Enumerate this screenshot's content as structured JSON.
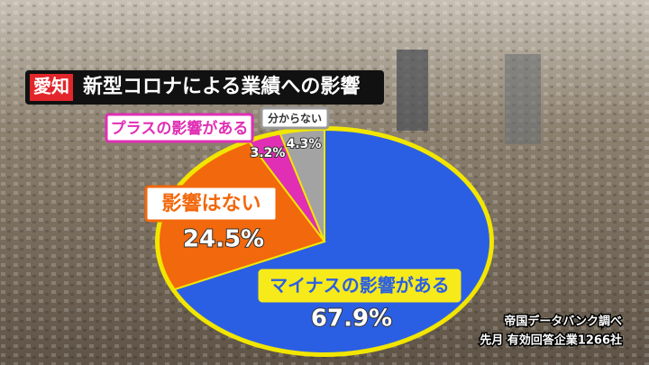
{
  "chart_data": {
    "type": "pie",
    "tag": "愛知",
    "title": "新型コロナによる業績への影響",
    "categories": [
      "マイナスの影響がある",
      "影響はない",
      "プラスの影響がある",
      "分からない"
    ],
    "values": [
      67.9,
      24.5,
      3.2,
      4.3
    ],
    "value_labels": [
      "67.9%",
      "24.5%",
      "3.2%",
      "4.3%"
    ],
    "colors": [
      "#2b5fe3",
      "#f2680c",
      "#e02fb4",
      "#a3a3a3"
    ],
    "source": [
      "帝国データバンク調べ",
      "先月 有効回答企業1266社"
    ]
  }
}
